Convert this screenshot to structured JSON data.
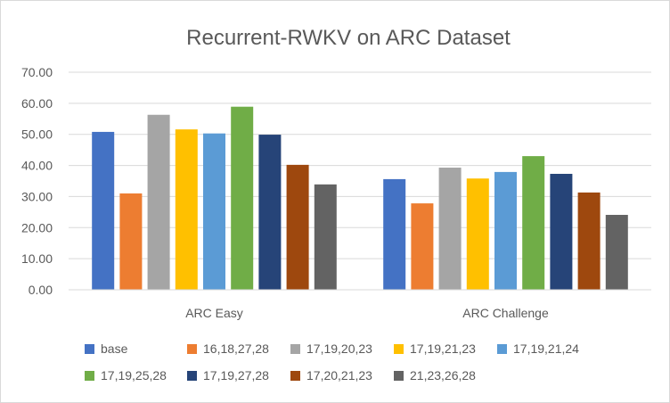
{
  "chart_data": {
    "type": "bar",
    "title": "Recurrent-RWKV on ARC Dataset",
    "xlabel": "",
    "ylabel": "",
    "ylim": [
      0,
      70
    ],
    "yticks": [
      "0.00",
      "10.00",
      "20.00",
      "30.00",
      "40.00",
      "50.00",
      "60.00",
      "70.00"
    ],
    "grid": true,
    "legend_position": "bottom",
    "categories": [
      "ARC Easy",
      "ARC Challenge"
    ],
    "series": [
      {
        "name": "base",
        "color": "#4472c4",
        "values": [
          50.8,
          35.6
        ]
      },
      {
        "name": "16,18,27,28",
        "color": "#ed7d31",
        "values": [
          31.0,
          27.8
        ]
      },
      {
        "name": "17,19,20,23",
        "color": "#a5a5a5",
        "values": [
          56.3,
          39.3
        ]
      },
      {
        "name": "17,19,21,23",
        "color": "#ffc000",
        "values": [
          51.6,
          35.8
        ]
      },
      {
        "name": "17,19,21,24",
        "color": "#5b9bd5",
        "values": [
          50.3,
          37.9
        ]
      },
      {
        "name": "17,19,25,28",
        "color": "#70ad47",
        "values": [
          58.9,
          43.0
        ]
      },
      {
        "name": "17,19,27,28",
        "color": "#264478",
        "values": [
          49.9,
          37.3
        ]
      },
      {
        "name": "17,20,21,23",
        "color": "#9e480e",
        "values": [
          40.2,
          31.3
        ]
      },
      {
        "name": "21,23,26,28",
        "color": "#636363",
        "values": [
          33.9,
          24.1
        ]
      }
    ]
  }
}
